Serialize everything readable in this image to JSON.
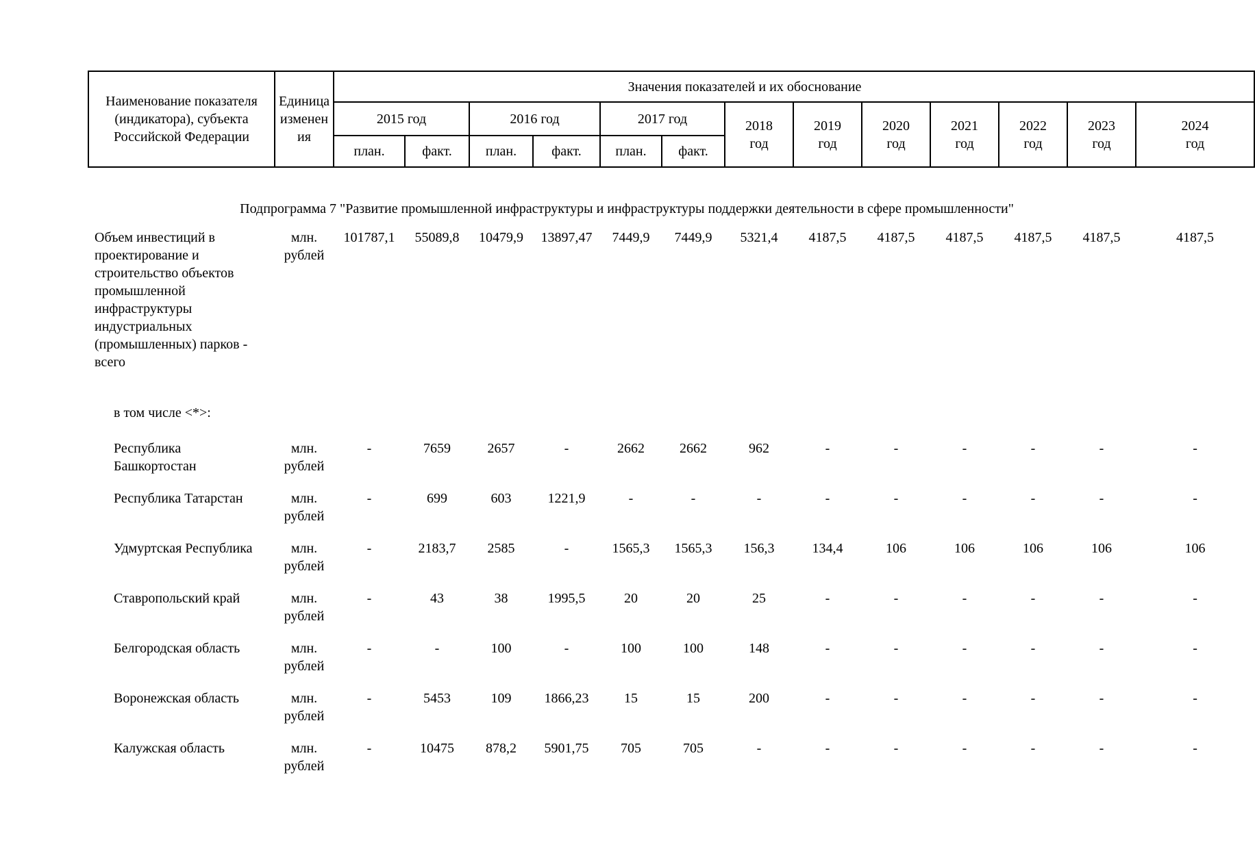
{
  "table": {
    "header": {
      "col_indicator": "Наименование показателя (индикатора), субъекта Российской Федерации",
      "col_unit": "Единица изменения",
      "col_values": "Значения показателей и их обоснование",
      "year_groups": [
        {
          "label": "2015 год",
          "sub": [
            "план.",
            "факт."
          ]
        },
        {
          "label": "2016 год",
          "sub": [
            "план.",
            "факт."
          ]
        },
        {
          "label": "2017 год",
          "sub": [
            "план.",
            "факт."
          ]
        },
        {
          "label": "2018 год"
        },
        {
          "label": "2019 год"
        },
        {
          "label": "2020 год"
        },
        {
          "label": "2021 год"
        },
        {
          "label": "2022 год"
        },
        {
          "label": "2023 год"
        },
        {
          "label": "2024 год"
        }
      ]
    },
    "body": [
      {
        "type": "section",
        "text": "Подпрограмма 7 \"Развитие промышленной инфраструктуры и инфраструктуры поддержки деятельности в сфере промышленности\""
      },
      {
        "type": "main",
        "label": "Объем инвестиций в проектирование и строительство объектов промышленной инфраструктуры индустриальных (промышленных) парков - всего",
        "unit": "млн. рублей",
        "values": [
          "101787,1",
          "55089,8",
          "10479,9",
          "13897,47",
          "7449,9",
          "7449,9",
          "5321,4",
          "4187,5",
          "4187,5",
          "4187,5",
          "4187,5",
          "4187,5",
          "4187,5"
        ]
      },
      {
        "type": "note",
        "text": "в том числе <*>:"
      },
      {
        "type": "region",
        "label": "Республика Башкортостан",
        "unit": "млн. рублей",
        "values": [
          "-",
          "7659",
          "2657",
          "-",
          "2662",
          "2662",
          "962",
          "-",
          "-",
          "-",
          "-",
          "-",
          "-"
        ]
      },
      {
        "type": "region",
        "label": "Республика Татарстан",
        "unit": "млн. рублей",
        "values": [
          "-",
          "699",
          "603",
          "1221,9",
          "-",
          "-",
          "-",
          "-",
          "-",
          "-",
          "-",
          "-",
          "-"
        ]
      },
      {
        "type": "region",
        "label": "Удмуртская Республика",
        "unit": "млн. рублей",
        "values": [
          "-",
          "2183,7",
          "2585",
          "-",
          "1565,3",
          "1565,3",
          "156,3",
          "134,4",
          "106",
          "106",
          "106",
          "106",
          "106"
        ]
      },
      {
        "type": "region",
        "label": "Ставропольский край",
        "unit": "млн. рублей",
        "values": [
          "-",
          "43",
          "38",
          "1995,5",
          "20",
          "20",
          "25",
          "-",
          "-",
          "-",
          "-",
          "-",
          "-"
        ]
      },
      {
        "type": "region",
        "label": "Белгородская область",
        "unit": "млн. рублей",
        "values": [
          "-",
          "-",
          "100",
          "-",
          "100",
          "100",
          "148",
          "-",
          "-",
          "-",
          "-",
          "-",
          "-"
        ]
      },
      {
        "type": "region",
        "label": "Воронежская область",
        "unit": "млн. рублей",
        "values": [
          "-",
          "5453",
          "109",
          "1866,23",
          "15",
          "15",
          "200",
          "-",
          "-",
          "-",
          "-",
          "-",
          "-"
        ]
      },
      {
        "type": "region",
        "label": "Калужская область",
        "unit": "млн. рублей",
        "values": [
          "-",
          "10475",
          "878,2",
          "5901,75",
          "705",
          "705",
          "-",
          "-",
          "-",
          "-",
          "-",
          "-",
          "-"
        ]
      }
    ]
  }
}
